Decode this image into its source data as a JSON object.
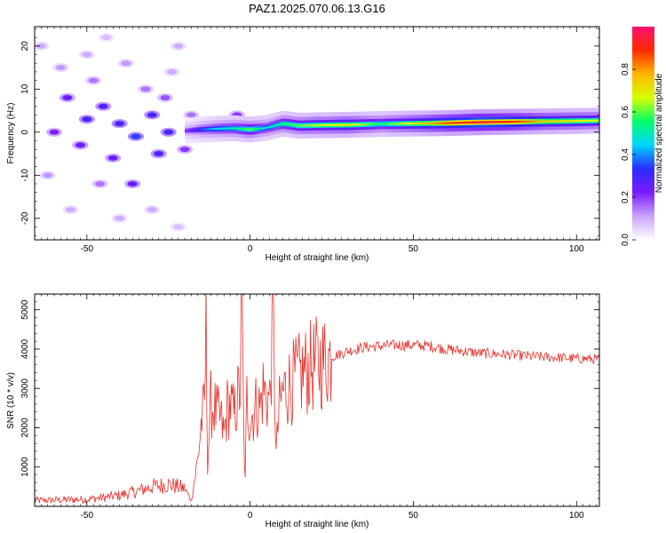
{
  "figure": {
    "title": "PAZ1.2025.070.06.13.G16"
  },
  "chart_data": [
    {
      "type": "heatmap",
      "xlabel": "Height of straight line (km)",
      "ylabel": "Frequency (Hz)",
      "xlim": [
        -66,
        107
      ],
      "ylim": [
        -25,
        24.5
      ],
      "xticks": [
        -50,
        0,
        50,
        100
      ],
      "yticks": [
        -20,
        -10,
        0,
        10,
        20
      ],
      "colorbar": {
        "label": "Normalized spectral amplitude",
        "range": [
          0,
          1
        ],
        "ticks": [
          0.0,
          0.2,
          0.4,
          0.6,
          0.8
        ],
        "colors": [
          "#ffffff",
          "#c9a3ff",
          "#7a1cff",
          "#2a2cff",
          "#00d4ff",
          "#00ff6a",
          "#d8ff00",
          "#ffb400",
          "#ff2a00",
          "#ff1070"
        ]
      },
      "ridge": {
        "x": [
          -20,
          -15,
          -10,
          -5,
          0,
          5,
          10,
          15,
          20,
          30,
          40,
          50,
          60,
          70,
          80,
          90,
          100,
          107
        ],
        "frequency": [
          0.3,
          0.6,
          0.8,
          0.9,
          0.6,
          1.0,
          2.0,
          1.5,
          1.6,
          1.7,
          1.9,
          2.0,
          2.1,
          2.3,
          2.4,
          2.5,
          2.6,
          2.7
        ],
        "amplitude": [
          0.2,
          0.35,
          0.45,
          0.5,
          0.6,
          0.45,
          0.55,
          0.6,
          0.65,
          0.7,
          0.55,
          0.7,
          0.85,
          0.95,
          0.9,
          0.75,
          0.7,
          0.65
        ]
      },
      "noise_blobs": [
        [
          -56,
          8,
          0.25
        ],
        [
          -50,
          3,
          0.3
        ],
        [
          -45,
          6,
          0.28
        ],
        [
          -60,
          0,
          0.22
        ],
        [
          -52,
          -3,
          0.25
        ],
        [
          -40,
          2,
          0.3
        ],
        [
          -35,
          -1,
          0.35
        ],
        [
          -30,
          4,
          0.3
        ],
        [
          -42,
          -6,
          0.25
        ],
        [
          -28,
          -5,
          0.28
        ],
        [
          -36,
          -12,
          0.25
        ],
        [
          -25,
          0,
          0.3
        ],
        [
          -48,
          12,
          0.15
        ],
        [
          -58,
          15,
          0.12
        ],
        [
          -62,
          -10,
          0.12
        ],
        [
          -55,
          -18,
          0.1
        ],
        [
          -40,
          -20,
          0.1
        ],
        [
          -24,
          14,
          0.1
        ],
        [
          -22,
          20,
          0.1
        ],
        [
          -32,
          10,
          0.15
        ],
        [
          -46,
          -12,
          0.15
        ],
        [
          -18,
          4,
          0.15
        ],
        [
          -20,
          -4,
          0.2
        ],
        [
          -64,
          20,
          0.1
        ],
        [
          -50,
          18,
          0.1
        ],
        [
          -30,
          -18,
          0.1
        ],
        [
          -22,
          -22,
          0.08
        ],
        [
          -44,
          22,
          0.08
        ],
        [
          -38,
          16,
          0.12
        ],
        [
          -26,
          8,
          0.18
        ],
        [
          -4,
          4,
          0.2
        ],
        [
          -12,
          -1,
          0.15
        ],
        [
          5,
          1,
          0.2
        ]
      ]
    },
    {
      "type": "line",
      "xlabel": "Height of straight line (km)",
      "ylabel": "SNR (10 * v/v)",
      "xlim": [
        -66,
        107
      ],
      "ylim": [
        0,
        5400
      ],
      "xticks": [
        -50,
        0,
        50,
        100
      ],
      "yticks": [
        1000,
        2000,
        3000,
        4000,
        5000
      ],
      "series": [
        {
          "color": "#e8302a",
          "x": [
            -66,
            -60,
            -55,
            -50,
            -45,
            -40,
            -35,
            -30,
            -25,
            -20,
            -18,
            -16,
            -15,
            -14,
            -13.5,
            -13,
            -12,
            -11,
            -10,
            -9,
            -8,
            -7,
            -6,
            -5,
            -4,
            -3,
            -2.5,
            -2,
            -1.5,
            -1,
            0,
            1,
            2,
            3,
            4,
            5,
            6,
            7,
            7.5,
            8,
            8.5,
            9,
            10,
            12,
            15,
            18,
            20,
            25,
            30,
            35,
            40,
            45,
            50,
            55,
            60,
            65,
            70,
            75,
            80,
            85,
            90,
            95,
            100,
            107
          ],
          "values": [
            150,
            160,
            170,
            180,
            220,
            280,
            380,
            500,
            560,
            450,
            150,
            1200,
            2100,
            2500,
            4450,
            1200,
            2600,
            2500,
            2300,
            2200,
            1800,
            2500,
            2600,
            2300,
            2700,
            3000,
            5400,
            2000,
            600,
            2800,
            2200,
            2400,
            2600,
            2500,
            3000,
            2800,
            2700,
            4850,
            3200,
            1300,
            2000,
            2500,
            2900,
            3100,
            3300,
            3500,
            3600,
            3800,
            3950,
            4050,
            4080,
            4100,
            4100,
            4080,
            4000,
            3950,
            3900,
            3880,
            3850,
            3820,
            3800,
            3780,
            3760,
            3740
          ]
        }
      ]
    }
  ]
}
